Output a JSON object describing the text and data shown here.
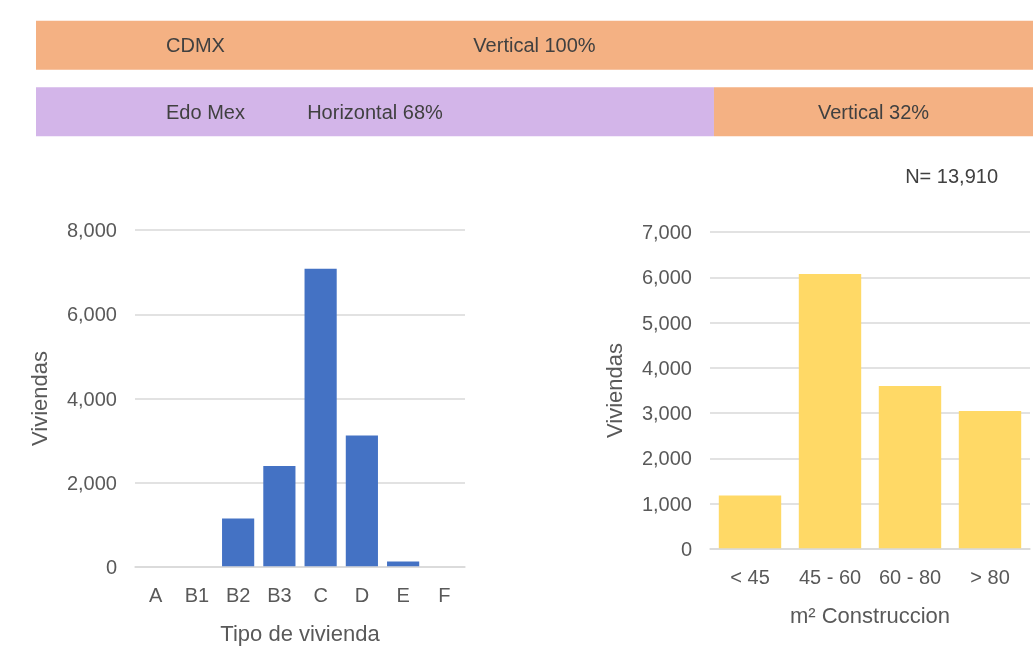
{
  "chart_data": [
    {
      "type": "bar",
      "orientation": "horizontal",
      "stacked": true,
      "categories": [
        "CDMX",
        "Edo Mex"
      ],
      "tick_labels": "y",
      "grid": false,
      "legend": false,
      "series": [
        {
          "name": "Horizontal",
          "color": "#d3b5e9",
          "values": [
            null,
            68
          ],
          "value_labels": [
            null,
            "68%"
          ]
        },
        {
          "name": "Vertical",
          "color": "#f4b183",
          "values": [
            100,
            32
          ],
          "value_labels": [
            "100%",
            "32%"
          ]
        }
      ],
      "annotations": [
        "N= 13,910"
      ]
    },
    {
      "type": "bar",
      "categories": [
        "A",
        "B1",
        "B2",
        "B3",
        "C",
        "D",
        "E",
        "F"
      ],
      "values": [
        0,
        0,
        1150,
        2400,
        7080,
        3120,
        130,
        0
      ],
      "color": "#4472c4",
      "xlabel": "Tipo de vivienda",
      "ylabel": "Viviendas",
      "ylim": [
        0,
        8000
      ],
      "yticks": [
        0,
        {
          "value": 2000,
          "label": "2,000"
        },
        {
          "value": 4000,
          "label": "4,000"
        },
        {
          "value": 6000,
          "label": "6,000"
        },
        {
          "value": 8000,
          "label": "8,000"
        }
      ],
      "grid": "y",
      "legend": false
    },
    {
      "type": "bar",
      "categories": [
        "< 45",
        "45 - 60",
        "60 - 80",
        "> 80"
      ],
      "values": [
        1180,
        6070,
        3600,
        3050
      ],
      "color": "#ffd966",
      "xlabel": "m² Construccion",
      "ylabel": "Viviendas",
      "ylim": [
        0,
        7000
      ],
      "yticks": [
        0,
        {
          "value": 1000,
          "label": "1,000"
        },
        {
          "value": 2000,
          "label": "2,000"
        },
        {
          "value": 3000,
          "label": "3,000"
        },
        {
          "value": 4000,
          "label": "4,000"
        },
        {
          "value": 5000,
          "label": "5,000"
        },
        {
          "value": 6000,
          "label": "6,000"
        },
        {
          "value": 7000,
          "label": "7,000"
        }
      ],
      "grid": "y",
      "legend": false
    }
  ]
}
